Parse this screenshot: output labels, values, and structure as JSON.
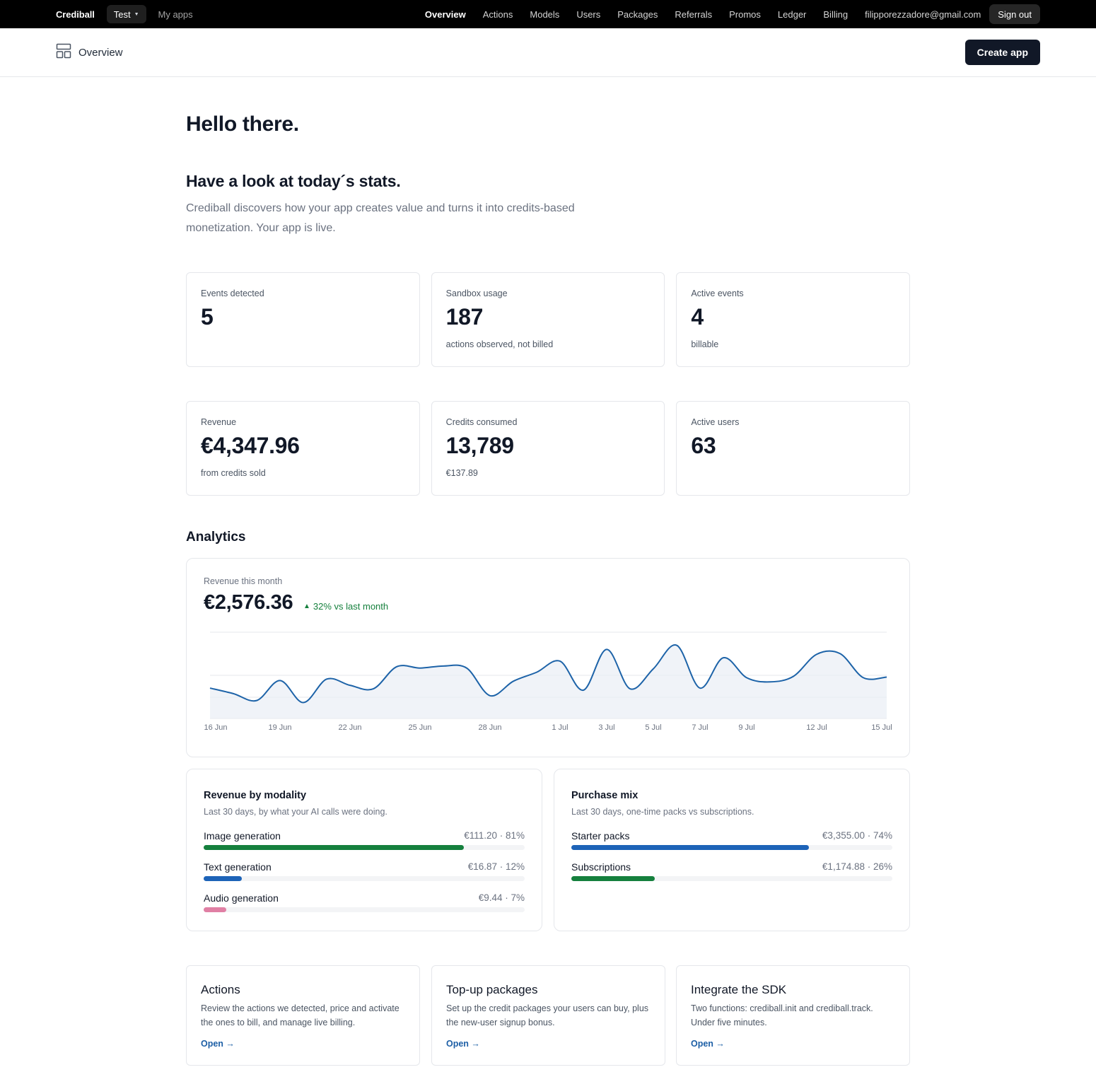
{
  "topnav": {
    "brand": "Crediball",
    "env": "Test",
    "my_apps": "My apps",
    "links": [
      "Overview",
      "Actions",
      "Models",
      "Users",
      "Packages",
      "Referrals",
      "Promos",
      "Ledger",
      "Billing"
    ],
    "email": "filipporezzadore@gmail.com",
    "sign_out": "Sign out"
  },
  "subheader": {
    "title": "Overview",
    "create_app": "Create app"
  },
  "hero": {
    "hello": "Hello there.",
    "stats_title": "Have a look at today´s stats.",
    "stats_desc": "Crediball discovers how your app creates value and turns it into credits-based monetization. Your app is live."
  },
  "stats_row1": [
    {
      "label": "Events detected",
      "value": "5",
      "sub": ""
    },
    {
      "label": "Sandbox usage",
      "value": "187",
      "sub": "actions observed, not billed"
    },
    {
      "label": "Active events",
      "value": "4",
      "sub": "billable"
    }
  ],
  "stats_row2": [
    {
      "label": "Revenue",
      "value": "€4,347.96",
      "sub": "from credits sold"
    },
    {
      "label": "Credits consumed",
      "value": "13,789",
      "sub": "€137.89"
    },
    {
      "label": "Active users",
      "value": "63",
      "sub": ""
    }
  ],
  "analytics": {
    "title": "Analytics",
    "revenue_label": "Revenue this month",
    "revenue_value": "€2,576.36",
    "delta": "32% vs last month",
    "delta_color": "#15803d"
  },
  "chart_data": {
    "type": "area",
    "x_tick_labels": [
      "16 Jun",
      "19 Jun",
      "22 Jun",
      "25 Jun",
      "28 Jun",
      "1 Jul",
      "3 Jul",
      "5 Jul",
      "7 Jul",
      "9 Jul",
      "12 Jul",
      "15 Jul"
    ],
    "x": [
      "16 Jun",
      "17 Jun",
      "18 Jun",
      "19 Jun",
      "20 Jun",
      "21 Jun",
      "22 Jun",
      "23 Jun",
      "24 Jun",
      "25 Jun",
      "26 Jun",
      "27 Jun",
      "28 Jun",
      "29 Jun",
      "30 Jun",
      "1 Jul",
      "2 Jul",
      "3 Jul",
      "4 Jul",
      "5 Jul",
      "6 Jul",
      "7 Jul",
      "8 Jul",
      "9 Jul",
      "10 Jul",
      "11 Jul",
      "12 Jul",
      "13 Jul",
      "14 Jul",
      "15 Jul"
    ],
    "values": [
      44,
      36,
      26,
      55,
      23,
      57,
      48,
      43,
      75,
      73,
      76,
      73,
      33,
      54,
      67,
      83,
      41,
      100,
      43,
      72,
      106,
      44,
      88,
      59,
      53,
      61,
      93,
      94,
      59,
      60
    ],
    "ylim": [
      0,
      125
    ],
    "grid": "horizontal",
    "line_color": "#1d63a8",
    "fill_color": "#e9eef5"
  },
  "revenue_by_modality": {
    "title": "Revenue by modality",
    "desc": "Last 30 days, by what your AI calls were doing.",
    "items": [
      {
        "name": "Image generation",
        "value": "€111.20 · 81%",
        "pct": 81,
        "color": "#15803d"
      },
      {
        "name": "Text generation",
        "value": "€16.87 · 12%",
        "pct": 12,
        "color": "#1d63b8"
      },
      {
        "name": "Audio generation",
        "value": "€9.44 · 7%",
        "pct": 7,
        "color": "#e07fa4"
      }
    ]
  },
  "purchase_mix": {
    "title": "Purchase mix",
    "desc": "Last 30 days, one-time packs vs subscriptions.",
    "items": [
      {
        "name": "Starter packs",
        "value": "€3,355.00 · 74%",
        "pct": 74,
        "color": "#1d63b8"
      },
      {
        "name": "Subscriptions",
        "value": "€1,174.88 · 26%",
        "pct": 26,
        "color": "#15803d"
      }
    ]
  },
  "link_cards": [
    {
      "title": "Actions",
      "desc": "Review the actions we detected, price and activate the ones to bill, and manage live billing.",
      "open": "Open →"
    },
    {
      "title": "Top-up packages",
      "desc": "Set up the credit packages your users can buy, plus the new-user signup bonus.",
      "open": "Open →"
    },
    {
      "title": "Integrate the SDK",
      "desc": "Two functions: crediball.init and crediball.track. Under five minutes.",
      "open": "Open →"
    }
  ]
}
